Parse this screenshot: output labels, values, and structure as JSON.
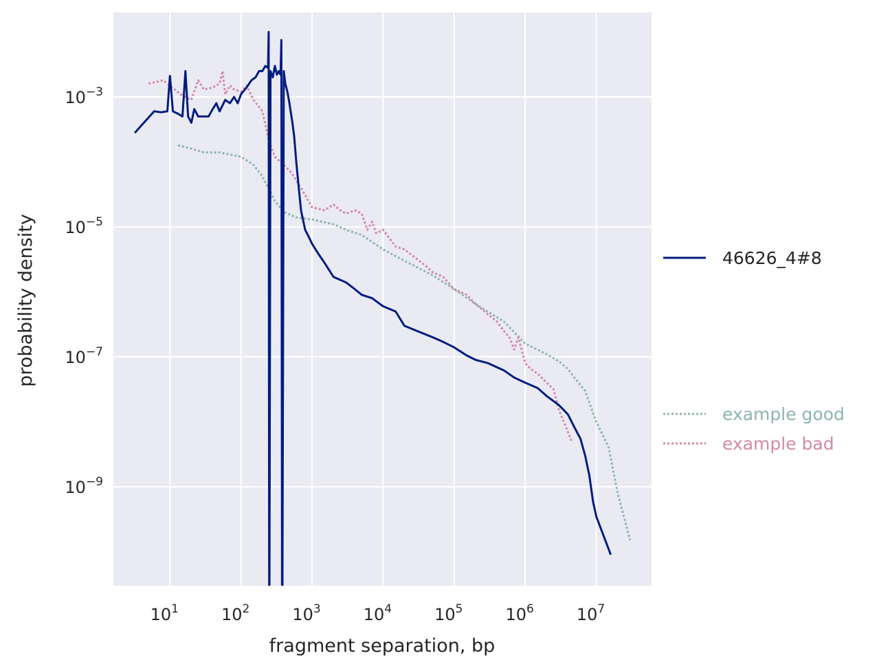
{
  "chart_data": {
    "type": "line",
    "title": "",
    "xlabel": "fragment separation, bp",
    "ylabel": "probability density",
    "xscale": "log",
    "yscale": "log",
    "xlim": [
      1.6,
      60000000
    ],
    "ylim": [
      3e-11,
      0.02
    ],
    "grid": true,
    "x_ticks": [
      {
        "base": "10",
        "exp": "1",
        "value": 10
      },
      {
        "base": "10",
        "exp": "2",
        "value": 100
      },
      {
        "base": "10",
        "exp": "3",
        "value": 1000
      },
      {
        "base": "10",
        "exp": "4",
        "value": 10000
      },
      {
        "base": "10",
        "exp": "5",
        "value": 100000
      },
      {
        "base": "10",
        "exp": "6",
        "value": 1000000
      },
      {
        "base": "10",
        "exp": "7",
        "value": 10000000
      }
    ],
    "y_ticks": [
      {
        "base": "10",
        "exp": "−3",
        "value": 0.001
      },
      {
        "base": "10",
        "exp": "−5",
        "value": 1e-05
      },
      {
        "base": "10",
        "exp": "−7",
        "value": 1e-07
      },
      {
        "base": "10",
        "exp": "−9",
        "value": 1e-09
      }
    ],
    "colors": {
      "background": "#eaeaf2",
      "grid": "#ffffff"
    },
    "legend_main": {
      "position": "right",
      "entries": [
        "46626_4#8"
      ]
    },
    "legend_examples": {
      "position": "right",
      "entries": [
        "example good",
        "example bad"
      ]
    },
    "series": [
      {
        "name": "46626_4#8",
        "color": "#001c7f",
        "style": "solid",
        "x": [
          3.2,
          6,
          7.5,
          9.2,
          10,
          11,
          13,
          15,
          16.5,
          18,
          20,
          22,
          25,
          30,
          35,
          40,
          45,
          50,
          60,
          70,
          80,
          90,
          100,
          120,
          140,
          160,
          180,
          200,
          220,
          240,
          245,
          250,
          260,
          280,
          300,
          320,
          340,
          360,
          370,
          380,
          400,
          420,
          450,
          480,
          500,
          530,
          560,
          600,
          650,
          700,
          800,
          900,
          1000,
          1200,
          1500,
          2000,
          3000,
          4000,
          5000,
          7000,
          10000,
          15000,
          20000,
          30000,
          50000,
          70000,
          100000,
          150000,
          200000,
          300000,
          500000,
          700000,
          1000000,
          1500000,
          2000000,
          3000000,
          4000000,
          5000000,
          6000000,
          7000000,
          8000000,
          9000000,
          10000000,
          16000000
        ],
        "y": [
          0.00028,
          0.0006,
          0.00058,
          0.0006,
          0.0021,
          0.0006,
          0.00055,
          0.0005,
          0.0025,
          0.0005,
          0.0004,
          0.00065,
          0.0005,
          0.0005,
          0.0005,
          0.00065,
          0.0008,
          0.0006,
          0.0009,
          0.0008,
          0.001,
          0.0008,
          0.0011,
          0.0014,
          0.0018,
          0.002,
          0.0025,
          0.0025,
          0.003,
          0.0028,
          0.01,
          1e-12,
          0.0025,
          0.002,
          0.003,
          0.0022,
          0.0025,
          0.0022,
          0.0075,
          1e-12,
          0.0025,
          0.0016,
          0.0012,
          0.0008,
          0.0006,
          0.0004,
          0.00025,
          0.0001,
          4e-05,
          1.8e-05,
          9e-06,
          7e-06,
          5.5e-06,
          4e-06,
          2.8e-06,
          1.7e-06,
          1.4e-06,
          1.1e-06,
          9e-07,
          8e-07,
          6e-07,
          5e-07,
          3e-07,
          2.5e-07,
          2e-07,
          1.7e-07,
          1.4e-07,
          1.05e-07,
          9e-08,
          8e-08,
          6.2e-08,
          4.8e-08,
          4e-08,
          3.3e-08,
          2.5e-08,
          1.8e-08,
          1.3e-08,
          8e-09,
          5.5e-09,
          3e-09,
          1.5e-09,
          6e-10,
          3.5e-10,
          9e-11
        ]
      },
      {
        "name": "example good",
        "color": "#8db4b0",
        "style": "dotted",
        "x": [
          13,
          20,
          30,
          50,
          70,
          100,
          150,
          200,
          300,
          400,
          600,
          1000,
          2000,
          3000,
          5000,
          10000,
          20000,
          50000,
          100000,
          200000,
          500000,
          1000000,
          2000000,
          3000000,
          4000000,
          5000000,
          7000000,
          10000000,
          15000000,
          20000000,
          30000000
        ],
        "y": [
          0.00018,
          0.00016,
          0.00014,
          0.00014,
          0.00013,
          0.00012,
          9e-05,
          6e-05,
          2.5e-05,
          1.7e-05,
          1.4e-05,
          1.3e-05,
          1.1e-05,
          9e-06,
          7.5e-06,
          4.5e-06,
          3e-06,
          1.8e-06,
          1.1e-06,
          6.5e-07,
          3.5e-07,
          1.6e-07,
          1.1e-07,
          8.5e-08,
          6.5e-08,
          4.7e-08,
          3e-08,
          1e-08,
          4e-09,
          8e-10,
          1.5e-10
        ]
      },
      {
        "name": "example bad",
        "color": "#d189a6",
        "style": "dotted",
        "x": [
          5,
          8,
          10,
          14,
          20,
          25,
          30,
          40,
          50,
          55,
          60,
          70,
          80,
          100,
          120,
          150,
          200,
          250,
          300,
          400,
          500,
          700,
          1000,
          1500,
          2000,
          2500,
          3000,
          4000,
          5000,
          6000,
          7000,
          8000,
          10000,
          15000,
          20000,
          30000,
          40000,
          50000,
          70000,
          100000,
          150000,
          200000,
          300000,
          400000,
          500000,
          600000,
          700000,
          800000,
          1000000,
          1200000,
          1500000,
          2000000,
          2500000,
          3000000,
          4000000,
          4500000
        ],
        "y": [
          0.0016,
          0.0018,
          0.0015,
          0.0011,
          0.0009,
          0.0018,
          0.0013,
          0.0014,
          0.0016,
          0.0025,
          0.0011,
          0.0015,
          0.0013,
          0.0012,
          0.0015,
          0.0009,
          0.0006,
          0.0002,
          0.00012,
          9e-05,
          7e-05,
          4e-05,
          2e-05,
          1.8e-05,
          2.2e-05,
          1.8e-05,
          1.6e-05,
          1.8e-05,
          1.6e-05,
          9e-06,
          1.2e-05,
          8e-06,
          9e-06,
          5e-06,
          4.5e-06,
          3.2e-06,
          2.5e-06,
          2e-06,
          1.7e-06,
          1.1e-06,
          9e-07,
          6.5e-07,
          4.5e-07,
          3.5e-07,
          2.5e-07,
          2e-07,
          1.3e-07,
          2e-07,
          8e-08,
          6.5e-08,
          5.5e-08,
          4e-08,
          3.2e-08,
          1.5e-08,
          7e-09,
          5e-09
        ]
      }
    ]
  }
}
